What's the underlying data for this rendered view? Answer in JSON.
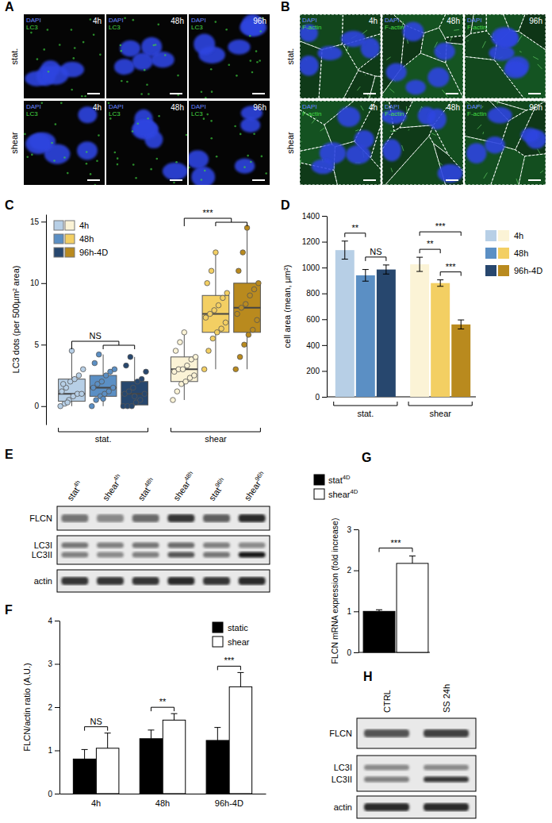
{
  "chart_data": [
    {
      "type": "box",
      "panel_label": "C",
      "y_label": "LC3 dots (per 500µm² area)",
      "ylim": [
        -1.5,
        15.6
      ],
      "yticks": [
        0,
        5,
        10,
        15
      ],
      "legend_labels": [
        "4h",
        "48h",
        "96h-4D"
      ],
      "groups": [
        {
          "label": "stat.",
          "significance": "NS",
          "colors": [
            "#b7cfe6",
            "#5b8fc4",
            "#27476e"
          ],
          "boxes": [
            {
              "min": 0,
              "q1": 0.4,
              "median": 1,
              "q3": 2.2,
              "max": 4.5,
              "points": [
                0,
                0.2,
                0.5,
                0.8,
                1,
                1,
                1.2,
                1.5,
                2,
                2.2,
                2.5,
                3,
                1.8,
                0.3,
                4.5
              ]
            },
            {
              "min": 0,
              "q1": 0.8,
              "median": 1.5,
              "q3": 2.5,
              "max": 4.2,
              "points": [
                0,
                0.5,
                0.8,
                1,
                1.2,
                1.5,
                1.5,
                1.8,
                2,
                2.5,
                2.8,
                3,
                3.5,
                4.2,
                0.6
              ]
            },
            {
              "min": 0,
              "q1": 0.1,
              "median": 1,
              "q3": 2,
              "max": 4,
              "points": [
                0,
                0,
                0,
                0.3,
                0.5,
                1,
                1,
                1.2,
                1.5,
                2,
                2.2,
                2.8,
                3.3,
                4,
                0.8
              ]
            }
          ]
        },
        {
          "label": "shear",
          "significance": "***",
          "colors": [
            "#fbf3d6",
            "#f3cf63",
            "#b98a1e"
          ],
          "boxes": [
            {
              "min": 0.5,
              "q1": 2,
              "median": 3,
              "q3": 4,
              "max": 6,
              "points": [
                0.5,
                1.2,
                1.8,
                2,
                2.3,
                2.5,
                2.8,
                3,
                3,
                3.3,
                3.8,
                4,
                4.5,
                5.2,
                6
              ]
            },
            {
              "min": 3,
              "q1": 6,
              "median": 7.5,
              "q3": 9,
              "max": 12.5,
              "points": [
                3,
                4.5,
                5.5,
                6,
                6.3,
                6.8,
                7.2,
                7.5,
                7.8,
                8.2,
                8.8,
                9.2,
                10,
                11,
                12.5
              ]
            },
            {
              "min": 3,
              "q1": 6,
              "median": 8,
              "q3": 10,
              "max": 14.5,
              "points": [
                3,
                4,
                5,
                5.8,
                6.2,
                7,
                7.5,
                8,
                8.3,
                9,
                9.5,
                10,
                11,
                12.5,
                14.5
              ]
            }
          ]
        }
      ]
    },
    {
      "type": "bar",
      "panel_label": "D",
      "y_label": "cell area (mean, µm²)",
      "ylim": [
        0,
        1400
      ],
      "yticks": [
        0,
        200,
        400,
        600,
        800,
        1000,
        1200,
        1400
      ],
      "legend_labels": [
        "4h",
        "48h",
        "96h-4D"
      ],
      "groups": [
        {
          "label": "stat.",
          "colors": [
            "#b7cfe6",
            "#5b8fc4",
            "#27476e"
          ],
          "values": [
            1135,
            940,
            985
          ],
          "errors": [
            70,
            45,
            35
          ],
          "significance": [
            {
              "text": "**",
              "pair": [
                0,
                1
              ]
            },
            {
              "text": "NS",
              "pair": [
                1,
                2
              ]
            }
          ]
        },
        {
          "label": "shear",
          "colors": [
            "#fbf3d6",
            "#f3cf63",
            "#b98a1e"
          ],
          "values": [
            1025,
            880,
            560
          ],
          "errors": [
            55,
            25,
            35
          ],
          "significance": [
            {
              "text": "***",
              "pair": [
                0,
                2
              ]
            },
            {
              "text": "**",
              "pair": [
                0,
                1
              ]
            },
            {
              "text": "***",
              "pair": [
                1,
                2
              ]
            }
          ]
        }
      ]
    },
    {
      "type": "bar",
      "panel_label": "F",
      "y_label": "FLCN/actin ratio (A.U.)",
      "ylim": [
        0,
        4
      ],
      "yticks": [
        0,
        1,
        2,
        3,
        4
      ],
      "categories": [
        "4h",
        "48h",
        "96h-4D"
      ],
      "series": [
        {
          "name": "static",
          "color": "#000000",
          "values": [
            0.8,
            1.27,
            1.23
          ],
          "errors": [
            0.22,
            0.2,
            0.3
          ]
        },
        {
          "name": "shear",
          "color": "#ffffff",
          "values": [
            1.05,
            1.7,
            2.47
          ],
          "errors": [
            0.35,
            0.15,
            0.33
          ]
        }
      ],
      "significance": [
        "NS",
        "**",
        "***"
      ]
    },
    {
      "type": "bar",
      "panel_label": "G",
      "y_label": "FLCN mRNA expression (fold increase)",
      "ylim": [
        0,
        3
      ],
      "yticks": [
        0,
        1,
        2,
        3
      ],
      "series": [
        {
          "name": "stat",
          "name_sup": "4D",
          "color": "#000000",
          "values": [
            1.0
          ],
          "errors": [
            0.04
          ]
        },
        {
          "name": "shear",
          "name_sup": "4D",
          "color": "#ffffff",
          "values": [
            2.17
          ],
          "errors": [
            0.18
          ]
        }
      ],
      "significance": "***"
    }
  ],
  "images": [
    {
      "panel_label": "A",
      "row_labels": [
        "stat.",
        "shear"
      ],
      "stain": "DAPI",
      "channel": "LC3",
      "times": [
        "4h",
        "48h",
        "96h"
      ]
    },
    {
      "panel_label": "B",
      "row_labels": [
        "stat.",
        "shear"
      ],
      "stain": "DAPI",
      "channel": "F-actin",
      "times": [
        "4h",
        "48h",
        "96h"
      ]
    }
  ],
  "blots": [
    {
      "panel_label": "E",
      "columns": [
        {
          "base": "stat",
          "sup": "4h"
        },
        {
          "base": "shear",
          "sup": "4h"
        },
        {
          "base": "stat",
          "sup": "48h"
        },
        {
          "base": "shear",
          "sup": "48h"
        },
        {
          "base": "stat",
          "sup": "96h"
        },
        {
          "base": "shear",
          "sup": "96h"
        }
      ],
      "rows": [
        {
          "labels": [
            "FLCN"
          ],
          "bands": [
            [
              0.55,
              0.45,
              0.6,
              0.85,
              0.65,
              0.9
            ]
          ]
        },
        {
          "labels": [
            "LC3I",
            "LC3II"
          ],
          "bands": [
            [
              0.55,
              0.5,
              0.55,
              0.6,
              0.5,
              0.45
            ],
            [
              0.5,
              0.45,
              0.5,
              0.7,
              0.55,
              1.0
            ]
          ]
        },
        {
          "labels": [
            "actin"
          ],
          "bands": [
            [
              0.85,
              0.85,
              0.85,
              0.9,
              0.85,
              0.9
            ]
          ]
        }
      ]
    },
    {
      "panel_label": "H",
      "columns": [
        "CTRL",
        "SS 24h"
      ],
      "rows": [
        {
          "labels": [
            "FLCN"
          ],
          "bands": [
            [
              0.7,
              0.8
            ]
          ]
        },
        {
          "labels": [
            "LC3I",
            "LC3II"
          ],
          "bands": [
            [
              0.45,
              0.45
            ],
            [
              0.5,
              0.85
            ]
          ]
        },
        {
          "labels": [
            "actin"
          ],
          "bands": [
            [
              0.9,
              0.9
            ]
          ]
        }
      ]
    }
  ]
}
